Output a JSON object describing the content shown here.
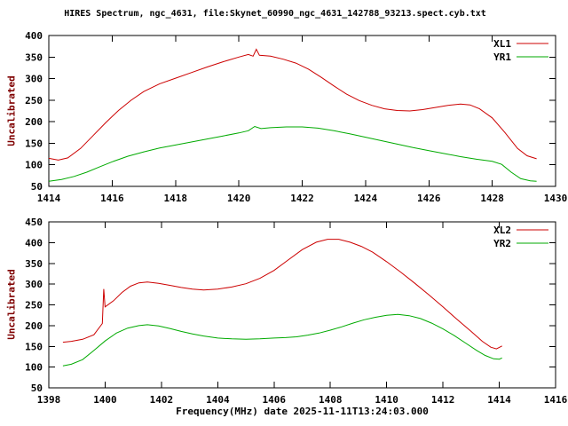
{
  "title": "HIRES Spectrum, ngc_4631, file:Skynet_60990_ngc_4631_142788_93213.spect.cyb.txt",
  "xlabel": "Frequency(MHz) date 2025-11-11T13:24:03.000",
  "colors": {
    "axis": "#000000",
    "tick_text": "#000000",
    "title_text": "#000000",
    "ylabel_text": "#7f0000",
    "series_red": "#cc0000",
    "series_green": "#00aa00"
  },
  "chart_data": [
    {
      "type": "line",
      "ylabel": "Uncalibrated",
      "xlim": [
        1414,
        1430
      ],
      "ylim": [
        50,
        400
      ],
      "xticks": [
        1414,
        1416,
        1418,
        1420,
        1422,
        1424,
        1426,
        1428,
        1430
      ],
      "yticks": [
        50,
        100,
        150,
        200,
        250,
        300,
        350,
        400
      ],
      "grid": false,
      "legend_position": "top-right",
      "series": [
        {
          "name": "XL1",
          "color": "#cc0000",
          "points": [
            [
              1414.0,
              115
            ],
            [
              1414.3,
              111
            ],
            [
              1414.6,
              116
            ],
            [
              1415.0,
              138
            ],
            [
              1415.4,
              168
            ],
            [
              1415.8,
              198
            ],
            [
              1416.2,
              226
            ],
            [
              1416.6,
              250
            ],
            [
              1417.0,
              270
            ],
            [
              1417.5,
              288
            ],
            [
              1418.0,
              301
            ],
            [
              1418.5,
              314
            ],
            [
              1419.0,
              327
            ],
            [
              1419.5,
              339
            ],
            [
              1420.0,
              350
            ],
            [
              1420.3,
              356
            ],
            [
              1420.45,
              352
            ],
            [
              1420.55,
              368
            ],
            [
              1420.65,
              354
            ],
            [
              1421.0,
              352
            ],
            [
              1421.4,
              345
            ],
            [
              1421.8,
              336
            ],
            [
              1422.2,
              322
            ],
            [
              1422.6,
              303
            ],
            [
              1423.0,
              283
            ],
            [
              1423.4,
              264
            ],
            [
              1423.8,
              249
            ],
            [
              1424.2,
              238
            ],
            [
              1424.6,
              230
            ],
            [
              1425.0,
              226
            ],
            [
              1425.4,
              225
            ],
            [
              1425.8,
              228
            ],
            [
              1426.2,
              233
            ],
            [
              1426.6,
              238
            ],
            [
              1427.0,
              241
            ],
            [
              1427.3,
              239
            ],
            [
              1427.6,
              230
            ],
            [
              1428.0,
              209
            ],
            [
              1428.4,
              175
            ],
            [
              1428.8,
              138
            ],
            [
              1429.1,
              121
            ],
            [
              1429.4,
              114
            ]
          ]
        },
        {
          "name": "YR1",
          "color": "#00aa00",
          "points": [
            [
              1414.0,
              62
            ],
            [
              1414.4,
              66
            ],
            [
              1414.8,
              73
            ],
            [
              1415.2,
              83
            ],
            [
              1415.6,
              95
            ],
            [
              1416.0,
              107
            ],
            [
              1416.5,
              120
            ],
            [
              1417.0,
              130
            ],
            [
              1417.5,
              139
            ],
            [
              1418.0,
              146
            ],
            [
              1418.5,
              153
            ],
            [
              1419.0,
              160
            ],
            [
              1419.5,
              167
            ],
            [
              1420.0,
              174
            ],
            [
              1420.3,
              179
            ],
            [
              1420.5,
              189
            ],
            [
              1420.7,
              184
            ],
            [
              1421.0,
              186
            ],
            [
              1421.5,
              188
            ],
            [
              1422.0,
              188
            ],
            [
              1422.5,
              185
            ],
            [
              1423.0,
              179
            ],
            [
              1423.5,
              172
            ],
            [
              1424.0,
              164
            ],
            [
              1424.5,
              156
            ],
            [
              1425.0,
              148
            ],
            [
              1425.5,
              140
            ],
            [
              1426.0,
              133
            ],
            [
              1426.5,
              126
            ],
            [
              1427.0,
              119
            ],
            [
              1427.5,
              113
            ],
            [
              1428.0,
              108
            ],
            [
              1428.3,
              101
            ],
            [
              1428.6,
              83
            ],
            [
              1428.9,
              68
            ],
            [
              1429.2,
              63
            ],
            [
              1429.4,
              62
            ]
          ]
        }
      ]
    },
    {
      "type": "line",
      "ylabel": "Uncalibrated",
      "xlim": [
        1398,
        1416
      ],
      "ylim": [
        50,
        450
      ],
      "xticks": [
        1398,
        1400,
        1402,
        1404,
        1406,
        1408,
        1410,
        1412,
        1414,
        1416
      ],
      "yticks": [
        50,
        100,
        150,
        200,
        250,
        300,
        350,
        400,
        450
      ],
      "grid": false,
      "legend_position": "top-right",
      "series": [
        {
          "name": "XL2",
          "color": "#cc0000",
          "points": [
            [
              1398.5,
              160
            ],
            [
              1398.8,
              162
            ],
            [
              1399.2,
              167
            ],
            [
              1399.6,
              178
            ],
            [
              1399.9,
              205
            ],
            [
              1399.95,
              288
            ],
            [
              1400.0,
              245
            ],
            [
              1400.3,
              260
            ],
            [
              1400.6,
              280
            ],
            [
              1400.9,
              295
            ],
            [
              1401.2,
              303
            ],
            [
              1401.5,
              305
            ],
            [
              1401.9,
              302
            ],
            [
              1402.3,
              297
            ],
            [
              1402.7,
              292
            ],
            [
              1403.1,
              288
            ],
            [
              1403.5,
              286
            ],
            [
              1404.0,
              288
            ],
            [
              1404.5,
              293
            ],
            [
              1405.0,
              301
            ],
            [
              1405.5,
              314
            ],
            [
              1406.0,
              333
            ],
            [
              1406.5,
              358
            ],
            [
              1407.0,
              383
            ],
            [
              1407.5,
              401
            ],
            [
              1407.9,
              408
            ],
            [
              1408.3,
              408
            ],
            [
              1408.7,
              401
            ],
            [
              1409.1,
              391
            ],
            [
              1409.5,
              377
            ],
            [
              1410.0,
              354
            ],
            [
              1410.5,
              329
            ],
            [
              1411.0,
              302
            ],
            [
              1411.5,
              274
            ],
            [
              1412.0,
              245
            ],
            [
              1412.5,
              215
            ],
            [
              1413.0,
              186
            ],
            [
              1413.4,
              162
            ],
            [
              1413.7,
              148
            ],
            [
              1413.9,
              144
            ],
            [
              1414.1,
              151
            ]
          ]
        },
        {
          "name": "YR2",
          "color": "#00aa00",
          "points": [
            [
              1398.5,
              103
            ],
            [
              1398.8,
              107
            ],
            [
              1399.2,
              118
            ],
            [
              1399.6,
              140
            ],
            [
              1400.0,
              163
            ],
            [
              1400.4,
              182
            ],
            [
              1400.8,
              194
            ],
            [
              1401.2,
              200
            ],
            [
              1401.5,
              202
            ],
            [
              1401.9,
              199
            ],
            [
              1402.3,
              193
            ],
            [
              1402.7,
              186
            ],
            [
              1403.1,
              180
            ],
            [
              1403.5,
              175
            ],
            [
              1404.0,
              170
            ],
            [
              1404.5,
              168
            ],
            [
              1405.0,
              167
            ],
            [
              1405.5,
              168
            ],
            [
              1406.0,
              170
            ],
            [
              1406.4,
              171
            ],
            [
              1406.8,
              173
            ],
            [
              1407.2,
              177
            ],
            [
              1407.6,
              182
            ],
            [
              1408.0,
              189
            ],
            [
              1408.4,
              197
            ],
            [
              1408.8,
              206
            ],
            [
              1409.2,
              214
            ],
            [
              1409.6,
              220
            ],
            [
              1410.0,
              225
            ],
            [
              1410.4,
              227
            ],
            [
              1410.8,
              224
            ],
            [
              1411.2,
              217
            ],
            [
              1411.6,
              206
            ],
            [
              1412.0,
              192
            ],
            [
              1412.4,
              176
            ],
            [
              1412.8,
              158
            ],
            [
              1413.2,
              140
            ],
            [
              1413.5,
              128
            ],
            [
              1413.8,
              120
            ],
            [
              1414.0,
              119
            ],
            [
              1414.1,
              122
            ]
          ]
        }
      ]
    }
  ]
}
